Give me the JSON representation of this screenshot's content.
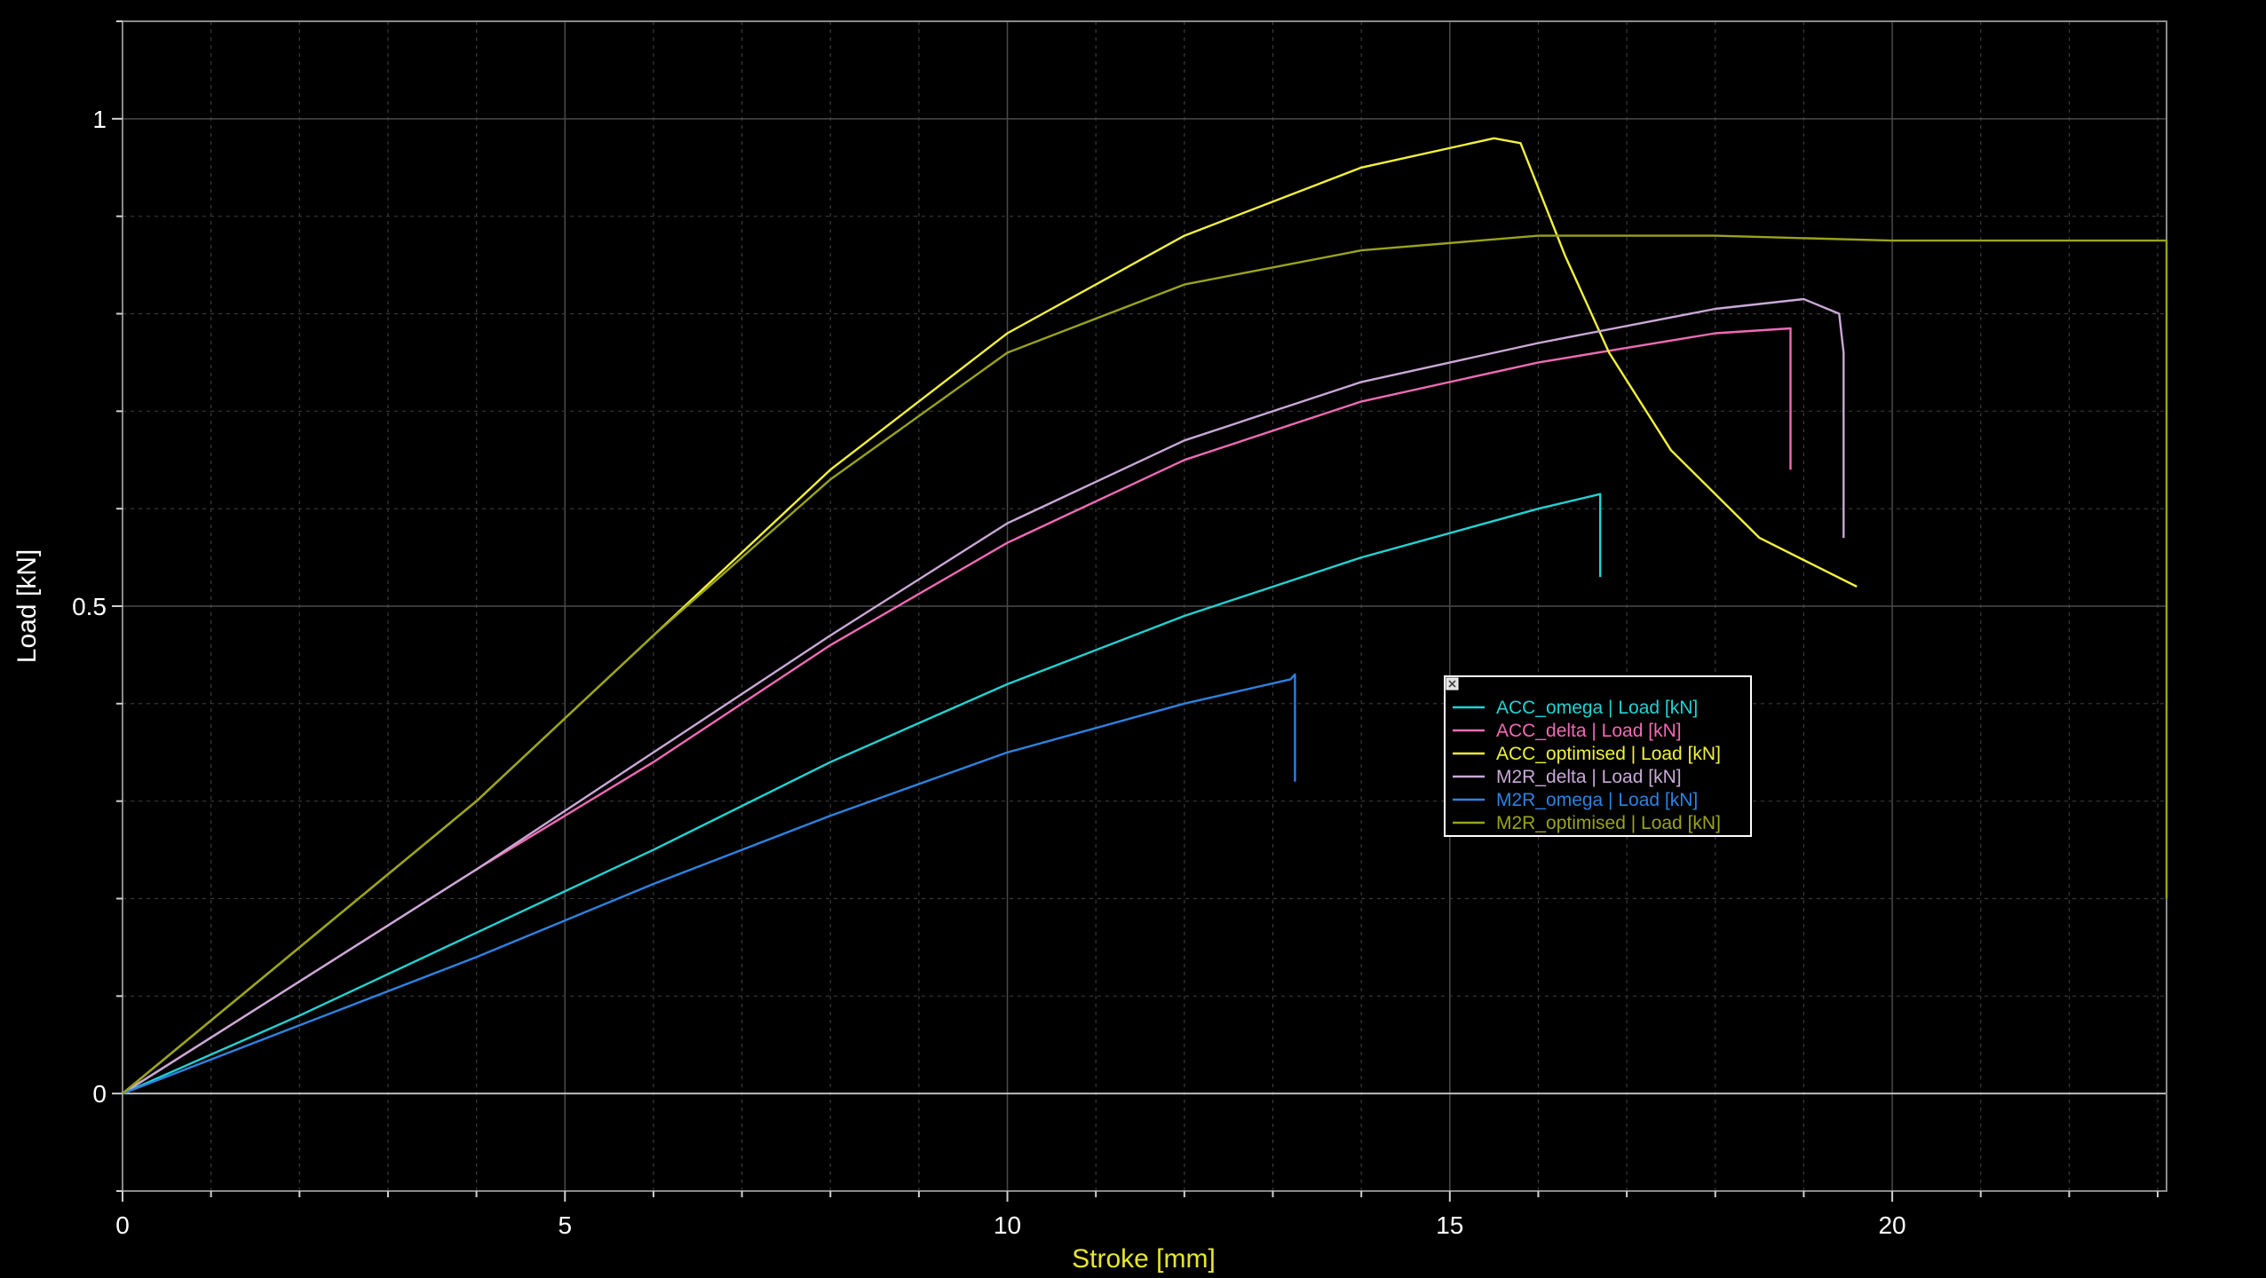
{
  "chart_data": {
    "type": "line",
    "xlabel": "Stroke [mm]",
    "ylabel": "Load [kN]",
    "xlim": [
      0,
      23.1
    ],
    "ylim": [
      -0.1,
      1.1
    ],
    "x_ticks": [
      0,
      5,
      10,
      15,
      20
    ],
    "y_ticks": [
      0,
      0.5,
      1
    ],
    "grid": true,
    "legend_position": "center-right",
    "series": [
      {
        "name": "ACC_omega | Load [kN]",
        "color": "#22d3d3",
        "x": [
          0,
          2,
          4,
          6,
          8,
          10,
          12,
          14,
          16,
          16.7,
          16.7
        ],
        "y": [
          0,
          0.08,
          0.165,
          0.25,
          0.34,
          0.42,
          0.49,
          0.55,
          0.6,
          0.615,
          0.53
        ]
      },
      {
        "name": "ACC_delta | Load [kN]",
        "color": "#f06ab4",
        "x": [
          0,
          2,
          4,
          6,
          8,
          10,
          12,
          14,
          16,
          18,
          18.85,
          18.85
        ],
        "y": [
          0,
          0.115,
          0.23,
          0.34,
          0.46,
          0.565,
          0.65,
          0.71,
          0.75,
          0.78,
          0.785,
          0.64
        ]
      },
      {
        "name": "ACC_optimised | Load [kN]",
        "color": "#f2f23c",
        "x": [
          0,
          2,
          4,
          6,
          8,
          10,
          12,
          14,
          15.5,
          15.8,
          16.3,
          16.8,
          17.5,
          18.5,
          19.6
        ],
        "y": [
          0,
          0.15,
          0.3,
          0.47,
          0.64,
          0.78,
          0.88,
          0.95,
          0.98,
          0.975,
          0.86,
          0.76,
          0.66,
          0.57,
          0.52
        ]
      },
      {
        "name": "M2R_delta | Load [kN]",
        "color": "#c9a8d6",
        "x": [
          0,
          2,
          4,
          6,
          8,
          10,
          12,
          14,
          16,
          18,
          19,
          19.4,
          19.45,
          19.45
        ],
        "y": [
          0,
          0.115,
          0.23,
          0.35,
          0.47,
          0.585,
          0.67,
          0.73,
          0.77,
          0.805,
          0.815,
          0.8,
          0.76,
          0.57
        ]
      },
      {
        "name": "M2R_omega | Load [kN]",
        "color": "#2d82e0",
        "x": [
          0,
          2,
          4,
          6,
          8,
          10,
          12,
          13.2,
          13.25,
          13.25
        ],
        "y": [
          0,
          0.07,
          0.14,
          0.215,
          0.285,
          0.35,
          0.4,
          0.425,
          0.43,
          0.32
        ]
      },
      {
        "name": "M2R_optimised | Load [kN]",
        "color": "#9aa31a",
        "x": [
          0,
          2,
          4,
          6,
          8,
          10,
          12,
          14,
          16,
          18,
          20,
          22,
          23.1,
          23.1
        ],
        "y": [
          0,
          0.15,
          0.3,
          0.47,
          0.63,
          0.76,
          0.83,
          0.865,
          0.88,
          0.88,
          0.875,
          0.875,
          0.875,
          0.2
        ]
      }
    ]
  }
}
